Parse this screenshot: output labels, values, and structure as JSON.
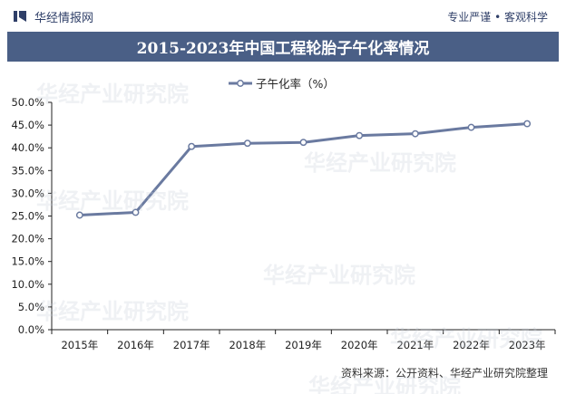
{
  "header": {
    "brand": "华经情报网",
    "tagline": "专业严谨 • 客观科学"
  },
  "watermark": "华经产业研究院",
  "footer": {
    "source": "资料来源：公开资料、华经产业研究院整理"
  },
  "colors": {
    "line": "#6a7aa0",
    "title_bar": "#4a5f86",
    "axis": "#222222"
  },
  "chart_data": {
    "type": "line",
    "title": "2015-2023年中国工程轮胎子午化率情况",
    "categories": [
      "2015年",
      "2016年",
      "2017年",
      "2018年",
      "2019年",
      "2020年",
      "2021年",
      "2022年",
      "2023年"
    ],
    "series": [
      {
        "name": "子午化率（%）",
        "values": [
          25.2,
          25.8,
          40.3,
          41.0,
          41.2,
          42.7,
          43.1,
          44.5,
          45.3
        ]
      }
    ],
    "ylim": [
      0,
      50
    ],
    "yticks": [
      "0.0%",
      "5.0%",
      "10.0%",
      "15.0%",
      "20.0%",
      "25.0%",
      "30.0%",
      "35.0%",
      "40.0%",
      "45.0%",
      "50.0%"
    ],
    "legend": "top-center",
    "grid": false,
    "marker": "hollow-circle"
  }
}
